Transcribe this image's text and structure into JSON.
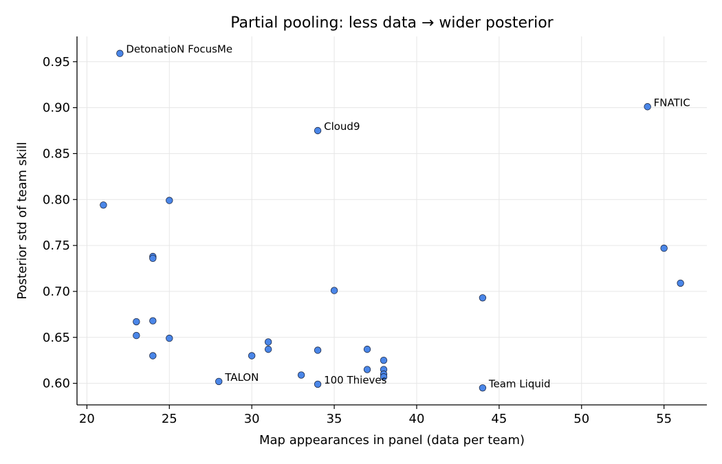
{
  "chart_data": {
    "type": "scatter",
    "title": "Partial pooling: less data → wider posterior",
    "xlabel": "Map appearances in panel (data per team)",
    "ylabel": "Posterior std of team skill",
    "xlim": [
      19.4,
      57.6
    ],
    "ylim": [
      0.5765,
      0.9775
    ],
    "xticks": [
      20,
      25,
      30,
      35,
      40,
      45,
      50,
      55
    ],
    "yticks": [
      0.6,
      0.65,
      0.7,
      0.75,
      0.8,
      0.85,
      0.9,
      0.95
    ],
    "ytick_labels": [
      "0.60",
      "0.65",
      "0.70",
      "0.75",
      "0.80",
      "0.85",
      "0.90",
      "0.95"
    ],
    "grid": true,
    "point_color": "#4a86e8",
    "points": [
      {
        "x": 22,
        "y": 0.959,
        "label": "DetonatioN FocusMe"
      },
      {
        "x": 54,
        "y": 0.901,
        "label": "FNATIC"
      },
      {
        "x": 34,
        "y": 0.875,
        "label": "Cloud9"
      },
      {
        "x": 21,
        "y": 0.794
      },
      {
        "x": 25,
        "y": 0.799
      },
      {
        "x": 55,
        "y": 0.747
      },
      {
        "x": 24,
        "y": 0.738
      },
      {
        "x": 24,
        "y": 0.736
      },
      {
        "x": 56,
        "y": 0.709
      },
      {
        "x": 35,
        "y": 0.701
      },
      {
        "x": 44,
        "y": 0.693
      },
      {
        "x": 23,
        "y": 0.667
      },
      {
        "x": 24,
        "y": 0.668
      },
      {
        "x": 23,
        "y": 0.652
      },
      {
        "x": 25,
        "y": 0.649
      },
      {
        "x": 24,
        "y": 0.63
      },
      {
        "x": 31,
        "y": 0.645
      },
      {
        "x": 31,
        "y": 0.637
      },
      {
        "x": 30,
        "y": 0.63
      },
      {
        "x": 34,
        "y": 0.636
      },
      {
        "x": 37,
        "y": 0.637
      },
      {
        "x": 38,
        "y": 0.625
      },
      {
        "x": 37,
        "y": 0.615
      },
      {
        "x": 38,
        "y": 0.615
      },
      {
        "x": 38,
        "y": 0.61
      },
      {
        "x": 38,
        "y": 0.607
      },
      {
        "x": 33,
        "y": 0.609
      },
      {
        "x": 28,
        "y": 0.602,
        "label": "TALON"
      },
      {
        "x": 34,
        "y": 0.599,
        "label": "100 Thieves"
      },
      {
        "x": 44,
        "y": 0.595,
        "label": "Team Liquid"
      }
    ]
  }
}
